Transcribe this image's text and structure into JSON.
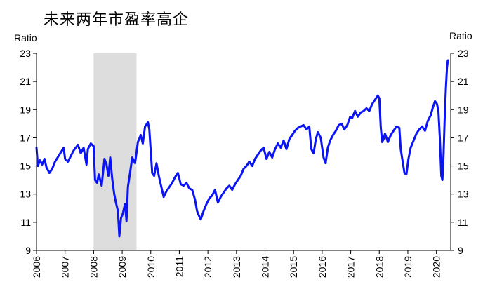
{
  "chart_data": {
    "type": "line",
    "title": "未来两年市盈率高企",
    "ylabel_left": "Ratio",
    "ylabel_right": "Ratio",
    "ylim": [
      9,
      23
    ],
    "yticks": [
      9,
      11,
      13,
      15,
      17,
      19,
      21,
      23
    ],
    "xlim": [
      2006.0,
      2020.5
    ],
    "xticks": [
      "2006",
      "2007",
      "2008",
      "2009",
      "2010",
      "2011",
      "2012",
      "2013",
      "2014",
      "2015",
      "2016",
      "2017",
      "2018",
      "2019",
      "2020"
    ],
    "shaded_regions": [
      {
        "x_start": 2008.0,
        "x_end": 2009.5,
        "color": "#dddddd"
      }
    ],
    "grid": false,
    "series": [
      {
        "color": "#0a14f5",
        "points": [
          [
            2006.0,
            16.3
          ],
          [
            2006.05,
            15.0
          ],
          [
            2006.12,
            15.4
          ],
          [
            2006.2,
            15.1
          ],
          [
            2006.28,
            15.5
          ],
          [
            2006.35,
            14.9
          ],
          [
            2006.45,
            14.5
          ],
          [
            2006.55,
            14.8
          ],
          [
            2006.65,
            15.3
          ],
          [
            2006.8,
            15.8
          ],
          [
            2006.95,
            16.3
          ],
          [
            2007.0,
            15.5
          ],
          [
            2007.1,
            15.3
          ],
          [
            2007.2,
            15.7
          ],
          [
            2007.3,
            16.1
          ],
          [
            2007.45,
            16.5
          ],
          [
            2007.55,
            15.9
          ],
          [
            2007.65,
            16.3
          ],
          [
            2007.75,
            15.1
          ],
          [
            2007.8,
            16.2
          ],
          [
            2007.9,
            16.6
          ],
          [
            2008.0,
            16.4
          ],
          [
            2008.05,
            14.0
          ],
          [
            2008.12,
            13.8
          ],
          [
            2008.18,
            14.4
          ],
          [
            2008.28,
            13.6
          ],
          [
            2008.38,
            15.5
          ],
          [
            2008.45,
            15.1
          ],
          [
            2008.52,
            14.3
          ],
          [
            2008.58,
            15.6
          ],
          [
            2008.65,
            14.1
          ],
          [
            2008.72,
            13.0
          ],
          [
            2008.78,
            12.4
          ],
          [
            2008.85,
            11.8
          ],
          [
            2008.9,
            10.0
          ],
          [
            2008.96,
            11.3
          ],
          [
            2009.02,
            11.6
          ],
          [
            2009.1,
            12.3
          ],
          [
            2009.15,
            11.1
          ],
          [
            2009.2,
            13.5
          ],
          [
            2009.28,
            14.6
          ],
          [
            2009.35,
            15.6
          ],
          [
            2009.45,
            15.2
          ],
          [
            2009.55,
            16.7
          ],
          [
            2009.65,
            17.2
          ],
          [
            2009.72,
            16.6
          ],
          [
            2009.8,
            17.8
          ],
          [
            2009.9,
            18.1
          ],
          [
            2009.95,
            17.6
          ],
          [
            2010.0,
            16.0
          ],
          [
            2010.05,
            14.5
          ],
          [
            2010.12,
            14.3
          ],
          [
            2010.2,
            15.2
          ],
          [
            2010.28,
            14.3
          ],
          [
            2010.36,
            13.6
          ],
          [
            2010.45,
            12.8
          ],
          [
            2010.55,
            13.2
          ],
          [
            2010.65,
            13.5
          ],
          [
            2010.75,
            13.8
          ],
          [
            2010.85,
            14.2
          ],
          [
            2010.95,
            14.5
          ],
          [
            2011.05,
            13.7
          ],
          [
            2011.15,
            13.6
          ],
          [
            2011.25,
            13.8
          ],
          [
            2011.35,
            13.4
          ],
          [
            2011.45,
            13.3
          ],
          [
            2011.55,
            12.6
          ],
          [
            2011.62,
            11.8
          ],
          [
            2011.68,
            11.5
          ],
          [
            2011.75,
            11.2
          ],
          [
            2011.85,
            11.8
          ],
          [
            2011.95,
            12.3
          ],
          [
            2012.05,
            12.7
          ],
          [
            2012.15,
            12.9
          ],
          [
            2012.25,
            13.3
          ],
          [
            2012.35,
            12.4
          ],
          [
            2012.45,
            12.8
          ],
          [
            2012.55,
            13.1
          ],
          [
            2012.65,
            13.4
          ],
          [
            2012.75,
            13.6
          ],
          [
            2012.85,
            13.3
          ],
          [
            2012.95,
            13.7
          ],
          [
            2013.05,
            14.0
          ],
          [
            2013.15,
            14.3
          ],
          [
            2013.25,
            14.8
          ],
          [
            2013.35,
            15.0
          ],
          [
            2013.45,
            15.3
          ],
          [
            2013.55,
            15.0
          ],
          [
            2013.65,
            15.5
          ],
          [
            2013.75,
            15.8
          ],
          [
            2013.85,
            16.1
          ],
          [
            2013.95,
            16.3
          ],
          [
            2014.05,
            15.5
          ],
          [
            2014.15,
            16.0
          ],
          [
            2014.25,
            15.6
          ],
          [
            2014.35,
            16.2
          ],
          [
            2014.45,
            16.6
          ],
          [
            2014.55,
            16.3
          ],
          [
            2014.65,
            16.8
          ],
          [
            2014.75,
            16.2
          ],
          [
            2014.85,
            16.9
          ],
          [
            2014.95,
            17.2
          ],
          [
            2015.05,
            17.5
          ],
          [
            2015.15,
            17.7
          ],
          [
            2015.25,
            17.8
          ],
          [
            2015.35,
            17.9
          ],
          [
            2015.45,
            17.6
          ],
          [
            2015.55,
            17.8
          ],
          [
            2015.62,
            16.2
          ],
          [
            2015.7,
            15.9
          ],
          [
            2015.78,
            16.9
          ],
          [
            2015.85,
            17.4
          ],
          [
            2015.95,
            17.0
          ],
          [
            2016.05,
            15.6
          ],
          [
            2016.12,
            15.2
          ],
          [
            2016.2,
            16.3
          ],
          [
            2016.28,
            16.8
          ],
          [
            2016.38,
            17.2
          ],
          [
            2016.48,
            17.5
          ],
          [
            2016.58,
            17.9
          ],
          [
            2016.68,
            18.0
          ],
          [
            2016.78,
            17.6
          ],
          [
            2016.88,
            17.9
          ],
          [
            2016.98,
            18.5
          ],
          [
            2017.05,
            18.4
          ],
          [
            2017.15,
            18.9
          ],
          [
            2017.25,
            18.5
          ],
          [
            2017.35,
            18.8
          ],
          [
            2017.45,
            18.9
          ],
          [
            2017.55,
            19.1
          ],
          [
            2017.65,
            18.9
          ],
          [
            2017.75,
            19.4
          ],
          [
            2017.85,
            19.7
          ],
          [
            2017.95,
            20.0
          ],
          [
            2018.0,
            19.8
          ],
          [
            2018.05,
            17.8
          ],
          [
            2018.1,
            16.7
          ],
          [
            2018.15,
            16.9
          ],
          [
            2018.2,
            17.3
          ],
          [
            2018.3,
            16.7
          ],
          [
            2018.4,
            17.2
          ],
          [
            2018.5,
            17.5
          ],
          [
            2018.6,
            17.8
          ],
          [
            2018.7,
            17.7
          ],
          [
            2018.75,
            16.2
          ],
          [
            2018.82,
            15.3
          ],
          [
            2018.88,
            14.5
          ],
          [
            2018.95,
            14.4
          ],
          [
            2019.02,
            15.5
          ],
          [
            2019.1,
            16.3
          ],
          [
            2019.2,
            16.8
          ],
          [
            2019.3,
            17.3
          ],
          [
            2019.4,
            17.6
          ],
          [
            2019.5,
            17.8
          ],
          [
            2019.6,
            17.5
          ],
          [
            2019.7,
            18.2
          ],
          [
            2019.8,
            18.6
          ],
          [
            2019.88,
            19.2
          ],
          [
            2019.95,
            19.6
          ],
          [
            2020.02,
            19.4
          ],
          [
            2020.07,
            18.9
          ],
          [
            2020.12,
            17.0
          ],
          [
            2020.17,
            14.3
          ],
          [
            2020.21,
            14.0
          ],
          [
            2020.25,
            15.8
          ],
          [
            2020.29,
            18.5
          ],
          [
            2020.33,
            20.5
          ],
          [
            2020.37,
            22.0
          ],
          [
            2020.4,
            22.5
          ]
        ]
      }
    ]
  }
}
